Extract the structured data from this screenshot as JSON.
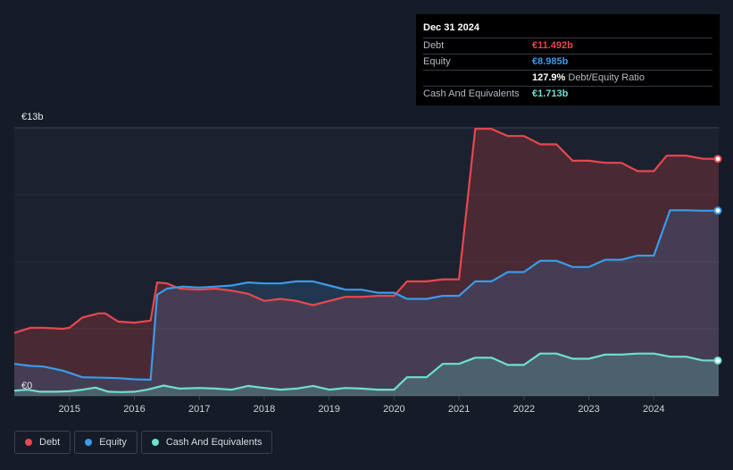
{
  "tooltip": {
    "date": "Dec 31 2024",
    "rows": [
      {
        "label": "Debt",
        "value": "€11.492b",
        "color": "#e8474f"
      },
      {
        "label": "Equity",
        "value": "€8.985b",
        "color": "#3a9be8"
      },
      {
        "label": "",
        "value": "127.9%",
        "extra": "Debt/Equity Ratio",
        "color": "#ffffff"
      },
      {
        "label": "Cash And Equivalents",
        "value": "€1.713b",
        "color": "#6ee0cf"
      }
    ]
  },
  "legend": [
    {
      "label": "Debt",
      "color": "#e8474f"
    },
    {
      "label": "Equity",
      "color": "#3a9be8"
    },
    {
      "label": "Cash And Equivalents",
      "color": "#6ee0cf"
    }
  ],
  "chart_data": {
    "type": "area",
    "y_top_label": "€13b",
    "y_bottom_label": "€0",
    "ylim": [
      0,
      13
    ],
    "xlim": [
      2014.15,
      2025.0
    ],
    "x_ticks": [
      "2015",
      "2016",
      "2017",
      "2018",
      "2019",
      "2020",
      "2021",
      "2022",
      "2023",
      "2024"
    ],
    "x_tick_values": [
      2015,
      2016,
      2017,
      2018,
      2019,
      2020,
      2021,
      2022,
      2023,
      2024
    ],
    "grid": true,
    "legend_position": "bottom-left",
    "series": [
      {
        "name": "Debt",
        "color": "#e8474f",
        "points": [
          [
            2014.15,
            3.05
          ],
          [
            2014.4,
            3.3
          ],
          [
            2014.6,
            3.3
          ],
          [
            2014.9,
            3.25
          ],
          [
            2015.0,
            3.3
          ],
          [
            2015.2,
            3.8
          ],
          [
            2015.45,
            4.0
          ],
          [
            2015.55,
            4.0
          ],
          [
            2015.75,
            3.6
          ],
          [
            2016.0,
            3.55
          ],
          [
            2016.25,
            3.65
          ],
          [
            2016.35,
            5.5
          ],
          [
            2016.5,
            5.45
          ],
          [
            2016.7,
            5.2
          ],
          [
            2017.0,
            5.15
          ],
          [
            2017.25,
            5.2
          ],
          [
            2017.5,
            5.1
          ],
          [
            2017.75,
            4.95
          ],
          [
            2018.0,
            4.6
          ],
          [
            2018.25,
            4.7
          ],
          [
            2018.5,
            4.6
          ],
          [
            2018.75,
            4.4
          ],
          [
            2019.0,
            4.6
          ],
          [
            2019.25,
            4.8
          ],
          [
            2019.5,
            4.8
          ],
          [
            2019.75,
            4.85
          ],
          [
            2020.0,
            4.85
          ],
          [
            2020.2,
            5.55
          ],
          [
            2020.5,
            5.55
          ],
          [
            2020.75,
            5.65
          ],
          [
            2021.0,
            5.65
          ],
          [
            2021.25,
            12.95
          ],
          [
            2021.5,
            12.95
          ],
          [
            2021.75,
            12.6
          ],
          [
            2022.0,
            12.6
          ],
          [
            2022.25,
            12.2
          ],
          [
            2022.5,
            12.2
          ],
          [
            2022.75,
            11.4
          ],
          [
            2023.0,
            11.4
          ],
          [
            2023.25,
            11.3
          ],
          [
            2023.5,
            11.3
          ],
          [
            2023.75,
            10.9
          ],
          [
            2024.0,
            10.9
          ],
          [
            2024.2,
            11.65
          ],
          [
            2024.5,
            11.65
          ],
          [
            2024.75,
            11.5
          ],
          [
            2025.0,
            11.492
          ]
        ]
      },
      {
        "name": "Equity",
        "color": "#3a9be8",
        "points": [
          [
            2014.15,
            1.55
          ],
          [
            2014.4,
            1.45
          ],
          [
            2014.6,
            1.42
          ],
          [
            2014.9,
            1.22
          ],
          [
            2015.2,
            0.9
          ],
          [
            2015.5,
            0.88
          ],
          [
            2015.75,
            0.86
          ],
          [
            2016.0,
            0.8
          ],
          [
            2016.25,
            0.78
          ],
          [
            2016.35,
            4.9
          ],
          [
            2016.5,
            5.2
          ],
          [
            2016.75,
            5.3
          ],
          [
            2017.0,
            5.25
          ],
          [
            2017.25,
            5.3
          ],
          [
            2017.5,
            5.35
          ],
          [
            2017.75,
            5.5
          ],
          [
            2018.0,
            5.45
          ],
          [
            2018.25,
            5.45
          ],
          [
            2018.5,
            5.55
          ],
          [
            2018.75,
            5.55
          ],
          [
            2019.0,
            5.35
          ],
          [
            2019.25,
            5.15
          ],
          [
            2019.5,
            5.15
          ],
          [
            2019.75,
            5.0
          ],
          [
            2020.0,
            5.0
          ],
          [
            2020.2,
            4.7
          ],
          [
            2020.5,
            4.7
          ],
          [
            2020.75,
            4.85
          ],
          [
            2021.0,
            4.85
          ],
          [
            2021.25,
            5.55
          ],
          [
            2021.5,
            5.55
          ],
          [
            2021.75,
            6.0
          ],
          [
            2022.0,
            6.0
          ],
          [
            2022.25,
            6.55
          ],
          [
            2022.5,
            6.55
          ],
          [
            2022.75,
            6.25
          ],
          [
            2023.0,
            6.25
          ],
          [
            2023.25,
            6.6
          ],
          [
            2023.5,
            6.6
          ],
          [
            2023.75,
            6.8
          ],
          [
            2024.0,
            6.8
          ],
          [
            2024.25,
            9.0
          ],
          [
            2024.5,
            9.0
          ],
          [
            2024.75,
            8.98
          ],
          [
            2025.0,
            8.985
          ]
        ]
      },
      {
        "name": "Cash And Equivalents",
        "color": "#6ee0cf",
        "points": [
          [
            2014.15,
            0.25
          ],
          [
            2014.35,
            0.3
          ],
          [
            2014.55,
            0.2
          ],
          [
            2014.8,
            0.2
          ],
          [
            2015.0,
            0.22
          ],
          [
            2015.2,
            0.3
          ],
          [
            2015.4,
            0.4
          ],
          [
            2015.6,
            0.2
          ],
          [
            2015.8,
            0.18
          ],
          [
            2016.0,
            0.2
          ],
          [
            2016.2,
            0.3
          ],
          [
            2016.45,
            0.5
          ],
          [
            2016.7,
            0.35
          ],
          [
            2017.0,
            0.38
          ],
          [
            2017.25,
            0.35
          ],
          [
            2017.5,
            0.3
          ],
          [
            2017.75,
            0.48
          ],
          [
            2018.0,
            0.38
          ],
          [
            2018.25,
            0.3
          ],
          [
            2018.5,
            0.35
          ],
          [
            2018.75,
            0.48
          ],
          [
            2019.0,
            0.3
          ],
          [
            2019.25,
            0.38
          ],
          [
            2019.5,
            0.35
          ],
          [
            2019.75,
            0.3
          ],
          [
            2020.0,
            0.3
          ],
          [
            2020.2,
            0.9
          ],
          [
            2020.5,
            0.9
          ],
          [
            2020.75,
            1.55
          ],
          [
            2021.0,
            1.55
          ],
          [
            2021.25,
            1.85
          ],
          [
            2021.5,
            1.85
          ],
          [
            2021.75,
            1.5
          ],
          [
            2022.0,
            1.5
          ],
          [
            2022.25,
            2.05
          ],
          [
            2022.5,
            2.05
          ],
          [
            2022.75,
            1.8
          ],
          [
            2023.0,
            1.8
          ],
          [
            2023.25,
            2.0
          ],
          [
            2023.5,
            2.0
          ],
          [
            2023.75,
            2.05
          ],
          [
            2024.0,
            2.05
          ],
          [
            2024.25,
            1.9
          ],
          [
            2024.5,
            1.9
          ],
          [
            2024.75,
            1.72
          ],
          [
            2025.0,
            1.713
          ]
        ]
      }
    ]
  }
}
